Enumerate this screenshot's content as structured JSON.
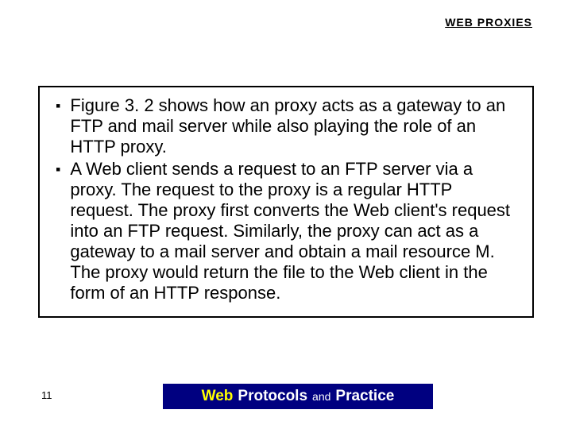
{
  "header": {
    "title": "WEB PROXIES"
  },
  "content": {
    "bullets": [
      "Figure 3. 2 shows how an proxy acts as a gateway to an FTP and mail server while also playing the role of an HTTP proxy.",
      " A Web client sends a request to an FTP server via a proxy. The request to the proxy is a regular HTTP request. The proxy first converts the Web client's request into an FTP request. Similarly, the proxy can act as a gateway to a mail server and obtain a mail resource M. The proxy would return the file to the Web client in the form of an HTTP response."
    ]
  },
  "footer": {
    "page_number": "11",
    "web": "Web",
    "protocols": "Protocols",
    "and": "and",
    "practice": "Practice",
    "bar_bg": "#000080",
    "web_color": "#ffff00",
    "text_color": "#ffffff"
  },
  "styling": {
    "bg": "#ffffff",
    "border_color": "#000000",
    "text_color": "#000000",
    "header_fontsize": 14,
    "bullet_fontsize": 22,
    "footer_fontsize": 19,
    "pagenum_fontsize": 13
  }
}
